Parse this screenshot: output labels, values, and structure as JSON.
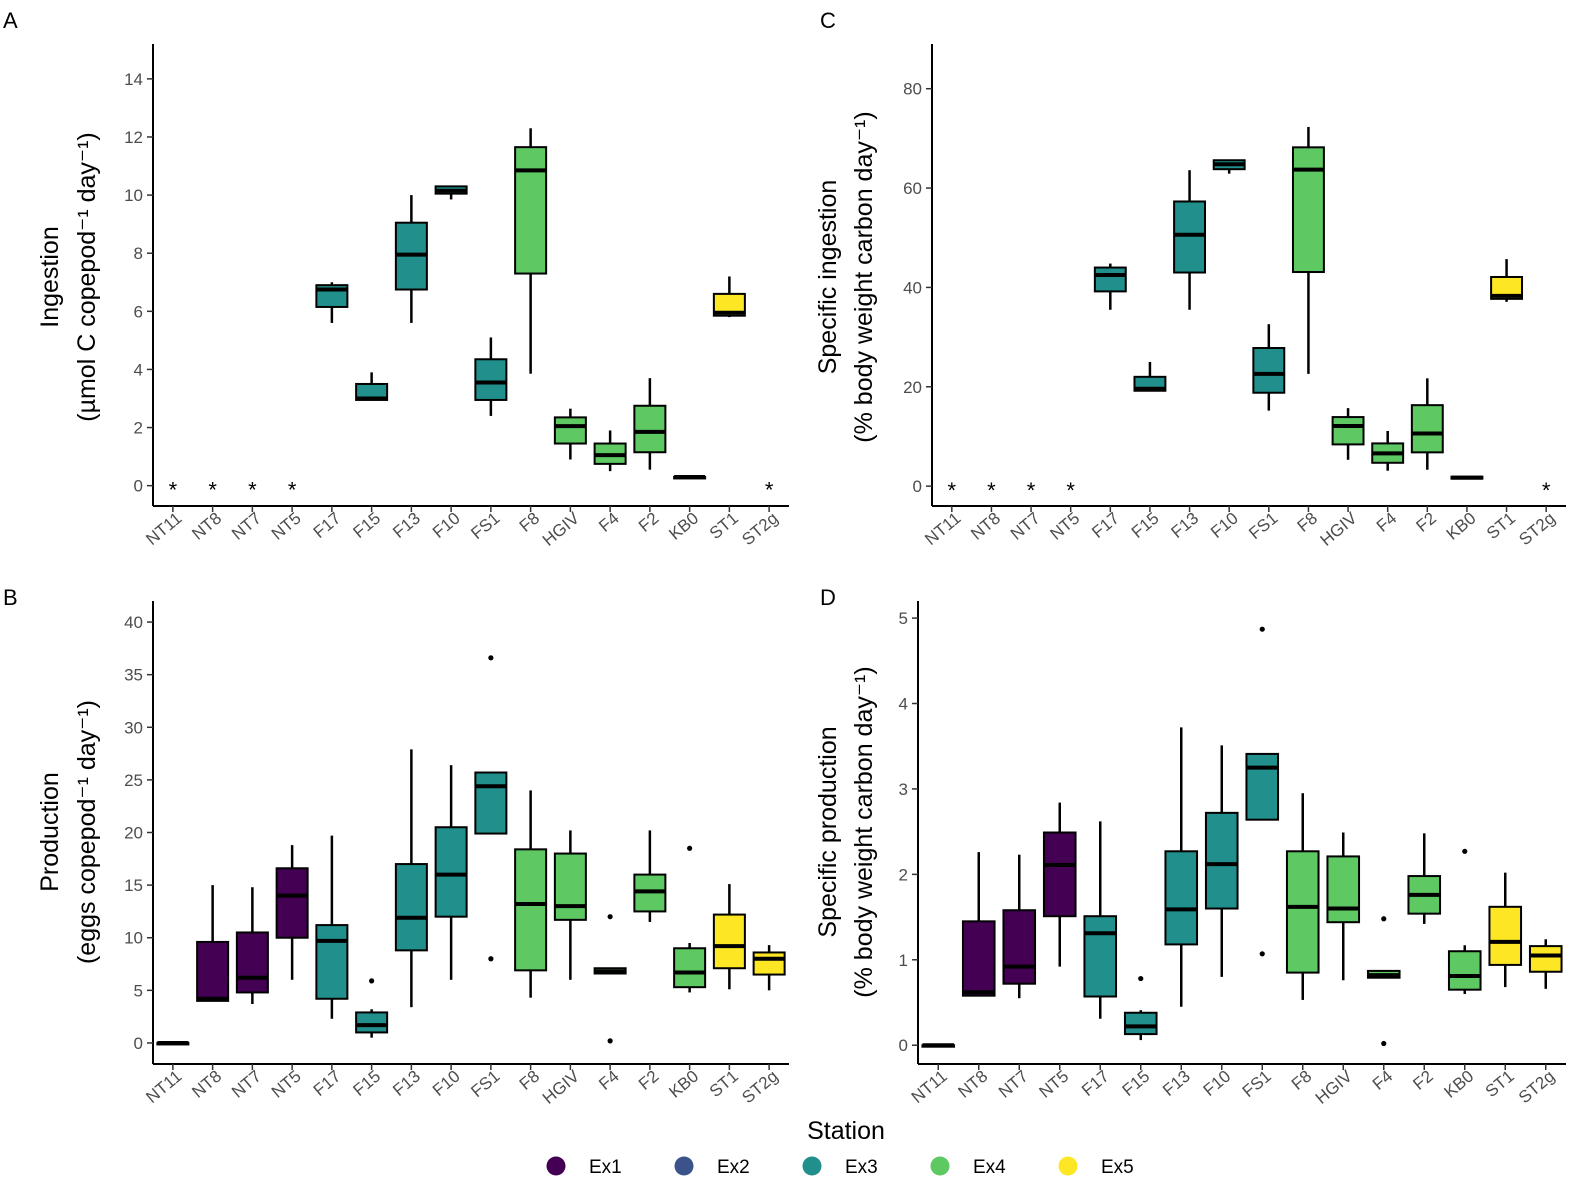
{
  "stations": [
    "NT11",
    "NT8",
    "NT7",
    "NT5",
    "F17",
    "F15",
    "F13",
    "F10",
    "FS1",
    "F8",
    "HGIV",
    "F4",
    "F2",
    "KB0",
    "ST1",
    "ST2g"
  ],
  "groups": [
    "Ex1",
    "Ex1",
    "Ex1",
    "Ex1",
    "Ex3",
    "Ex3",
    "Ex3",
    "Ex3",
    "Ex3",
    "Ex4",
    "Ex4",
    "Ex4",
    "Ex4",
    "Ex4",
    "Ex5",
    "Ex5"
  ],
  "legend": {
    "title": "Station",
    "items": [
      {
        "label": "Ex1",
        "color": "#440154"
      },
      {
        "label": "Ex2",
        "color": "#3b528b"
      },
      {
        "label": "Ex3",
        "color": "#21908c"
      },
      {
        "label": "Ex4",
        "color": "#5ec962"
      },
      {
        "label": "Ex5",
        "color": "#fde725"
      }
    ]
  },
  "chart_data": [
    {
      "panel": "A",
      "type": "boxplot",
      "ylabel_line1": "Ingestion",
      "ylabel_line2": "(µmol C copepod⁻¹ day⁻¹)",
      "ylim": [
        -0.7,
        15.2
      ],
      "yticks": [
        0,
        2,
        4,
        6,
        8,
        10,
        12,
        14
      ],
      "missing_marker": "*",
      "missing": [
        "NT11",
        "NT8",
        "NT7",
        "NT5",
        "ST2g"
      ],
      "boxes": {
        "F17": {
          "lo": 5.6,
          "q1": 6.15,
          "med": 6.75,
          "q3": 6.9,
          "hi": 7.0
        },
        "F15": {
          "lo": 2.95,
          "q1": 2.95,
          "med": 3.0,
          "q3": 3.5,
          "hi": 3.9
        },
        "F13": {
          "lo": 5.6,
          "q1": 6.75,
          "med": 7.95,
          "q3": 9.05,
          "hi": 10.0
        },
        "F10": {
          "lo": 9.85,
          "q1": 10.05,
          "med": 10.15,
          "q3": 10.3,
          "hi": 10.3
        },
        "FS1": {
          "lo": 2.4,
          "q1": 2.95,
          "med": 3.55,
          "q3": 4.35,
          "hi": 5.1
        },
        "F8": {
          "lo": 3.85,
          "q1": 7.3,
          "med": 10.85,
          "q3": 11.65,
          "hi": 12.3
        },
        "HGIV": {
          "lo": 0.9,
          "q1": 1.45,
          "med": 2.05,
          "q3": 2.35,
          "hi": 2.65
        },
        "F4": {
          "lo": 0.5,
          "q1": 0.75,
          "med": 1.05,
          "q3": 1.45,
          "hi": 1.9
        },
        "F2": {
          "lo": 0.55,
          "q1": 1.15,
          "med": 1.85,
          "q3": 2.75,
          "hi": 3.7
        },
        "KB0": {
          "lo": 0.25,
          "q1": 0.25,
          "med": 0.3,
          "q3": 0.3,
          "hi": 0.3
        },
        "ST1": {
          "lo": 5.8,
          "q1": 5.85,
          "med": 5.95,
          "q3": 6.6,
          "hi": 7.2
        }
      },
      "outliers": {}
    },
    {
      "panel": "B",
      "type": "boxplot",
      "ylabel_line1": "Production",
      "ylabel_line2": "(eggs copepod⁻¹ day⁻¹)",
      "ylim": [
        -2,
        42
      ],
      "yticks": [
        0,
        5,
        10,
        15,
        20,
        25,
        30,
        35,
        40
      ],
      "missing_marker": "*",
      "missing": [],
      "boxes": {
        "NT11": {
          "lo": 0,
          "q1": 0,
          "med": 0,
          "q3": 0,
          "hi": 0
        },
        "NT8": {
          "lo": 4,
          "q1": 4,
          "med": 4.2,
          "q3": 9.6,
          "hi": 15.0
        },
        "NT7": {
          "lo": 3.7,
          "q1": 4.8,
          "med": 6.2,
          "q3": 10.5,
          "hi": 14.8
        },
        "NT5": {
          "lo": 6.0,
          "q1": 10.0,
          "med": 14.0,
          "q3": 16.6,
          "hi": 18.8
        },
        "F17": {
          "lo": 2.3,
          "q1": 4.2,
          "med": 9.7,
          "q3": 11.2,
          "hi": 19.7
        },
        "F15": {
          "lo": 0.5,
          "q1": 1.0,
          "med": 1.7,
          "q3": 2.9,
          "hi": 3.2
        },
        "F13": {
          "lo": 3.4,
          "q1": 8.8,
          "med": 11.9,
          "q3": 17.0,
          "hi": 27.9
        },
        "F10": {
          "lo": 6.0,
          "q1": 12.0,
          "med": 16.0,
          "q3": 20.5,
          "hi": 26.4
        },
        "FS1": {
          "lo": 19.9,
          "q1": 19.9,
          "med": 24.4,
          "q3": 25.7,
          "hi": 25.7
        },
        "F8": {
          "lo": 4.3,
          "q1": 6.9,
          "med": 13.2,
          "q3": 18.4,
          "hi": 24.0
        },
        "HGIV": {
          "lo": 6.0,
          "q1": 11.7,
          "med": 13.0,
          "q3": 18.0,
          "hi": 20.2
        },
        "F4": {
          "lo": 6.6,
          "q1": 6.6,
          "med": 6.8,
          "q3": 7.1,
          "hi": 7.1
        },
        "F2": {
          "lo": 11.5,
          "q1": 12.5,
          "med": 14.4,
          "q3": 16.0,
          "hi": 20.2
        },
        "KB0": {
          "lo": 4.8,
          "q1": 5.3,
          "med": 6.7,
          "q3": 9.0,
          "hi": 9.5
        },
        "ST1": {
          "lo": 5.1,
          "q1": 7.1,
          "med": 9.2,
          "q3": 12.2,
          "hi": 15.1
        },
        "ST2g": {
          "lo": 5.0,
          "q1": 6.5,
          "med": 8.0,
          "q3": 8.6,
          "hi": 9.3
        }
      },
      "outliers": {
        "F15": [
          5.9
        ],
        "FS1": [
          36.6,
          8.0
        ],
        "F4": [
          12.0,
          0.2
        ],
        "KB0": [
          18.5
        ]
      }
    },
    {
      "panel": "C",
      "type": "boxplot",
      "ylabel_line1": "Specific ingestion",
      "ylabel_line2": "(% body weight carbon day⁻¹)",
      "ylim": [
        -4,
        89
      ],
      "yticks": [
        0,
        20,
        40,
        60,
        80
      ],
      "missing_marker": "*",
      "missing": [
        "NT11",
        "NT8",
        "NT7",
        "NT5",
        "ST2g"
      ],
      "boxes": {
        "F17": {
          "lo": 35.5,
          "q1": 39.2,
          "med": 42.5,
          "q3": 44.0,
          "hi": 44.8
        },
        "F15": {
          "lo": 19.2,
          "q1": 19.2,
          "med": 19.6,
          "q3": 22.0,
          "hi": 25.0
        },
        "F13": {
          "lo": 35.5,
          "q1": 43.0,
          "med": 50.6,
          "q3": 57.3,
          "hi": 63.6
        },
        "F10": {
          "lo": 62.9,
          "q1": 63.8,
          "med": 64.8,
          "q3": 65.6,
          "hi": 65.6
        },
        "FS1": {
          "lo": 15.2,
          "q1": 18.8,
          "med": 22.6,
          "q3": 27.8,
          "hi": 32.6
        },
        "F8": {
          "lo": 22.6,
          "q1": 43.1,
          "med": 63.7,
          "q3": 68.2,
          "hi": 72.3
        },
        "HGIV": {
          "lo": 5.3,
          "q1": 8.4,
          "med": 12.1,
          "q3": 13.9,
          "hi": 15.7
        },
        "F4": {
          "lo": 3.1,
          "q1": 4.7,
          "med": 6.6,
          "q3": 8.6,
          "hi": 11.1
        },
        "F2": {
          "lo": 3.3,
          "q1": 6.8,
          "med": 10.6,
          "q3": 16.3,
          "hi": 21.7
        },
        "KB0": {
          "lo": 1.5,
          "q1": 1.5,
          "med": 1.7,
          "q3": 1.9,
          "hi": 1.9
        },
        "ST1": {
          "lo": 37.1,
          "q1": 37.7,
          "med": 38.3,
          "q3": 42.1,
          "hi": 45.7
        }
      },
      "outliers": {}
    },
    {
      "panel": "D",
      "type": "boxplot",
      "ylabel_line1": "Specific production",
      "ylabel_line2": "(% body weight carbon day⁻¹)",
      "ylim": [
        -0.22,
        5.2
      ],
      "yticks": [
        0,
        1,
        2,
        3,
        4,
        5
      ],
      "missing_marker": "*",
      "missing": [],
      "boxes": {
        "NT11": {
          "lo": 0,
          "q1": 0,
          "med": 0,
          "q3": 0,
          "hi": 0
        },
        "NT8": {
          "lo": 0.58,
          "q1": 0.58,
          "med": 0.62,
          "q3": 1.45,
          "hi": 2.26
        },
        "NT7": {
          "lo": 0.55,
          "q1": 0.72,
          "med": 0.92,
          "q3": 1.58,
          "hi": 2.23
        },
        "NT5": {
          "lo": 0.92,
          "q1": 1.51,
          "med": 2.11,
          "q3": 2.49,
          "hi": 2.84
        },
        "F17": {
          "lo": 0.31,
          "q1": 0.57,
          "med": 1.31,
          "q3": 1.51,
          "hi": 2.62
        },
        "F15": {
          "lo": 0.06,
          "q1": 0.13,
          "med": 0.22,
          "q3": 0.38,
          "hi": 0.41
        },
        "F13": {
          "lo": 0.45,
          "q1": 1.18,
          "med": 1.59,
          "q3": 2.27,
          "hi": 3.72
        },
        "F10": {
          "lo": 0.8,
          "q1": 1.6,
          "med": 2.12,
          "q3": 2.72,
          "hi": 3.51
        },
        "FS1": {
          "lo": 2.64,
          "q1": 2.64,
          "med": 3.25,
          "q3": 3.41,
          "hi": 3.41
        },
        "F8": {
          "lo": 0.53,
          "q1": 0.85,
          "med": 1.62,
          "q3": 2.27,
          "hi": 2.95
        },
        "HGIV": {
          "lo": 0.76,
          "q1": 1.44,
          "med": 1.6,
          "q3": 2.21,
          "hi": 2.49
        },
        "F4": {
          "lo": 0.79,
          "q1": 0.79,
          "med": 0.82,
          "q3": 0.87,
          "hi": 0.87
        },
        "F2": {
          "lo": 1.42,
          "q1": 1.54,
          "med": 1.76,
          "q3": 1.98,
          "hi": 2.48
        },
        "KB0": {
          "lo": 0.6,
          "q1": 0.65,
          "med": 0.81,
          "q3": 1.1,
          "hi": 1.17
        },
        "ST1": {
          "lo": 0.68,
          "q1": 0.94,
          "med": 1.21,
          "q3": 1.62,
          "hi": 2.02
        },
        "ST2g": {
          "lo": 0.66,
          "q1": 0.86,
          "med": 1.05,
          "q3": 1.16,
          "hi": 1.24
        }
      },
      "outliers": {
        "F15": [
          0.78
        ],
        "FS1": [
          4.87,
          1.07
        ],
        "F4": [
          1.48,
          0.02
        ],
        "KB0": [
          2.27
        ]
      }
    }
  ]
}
